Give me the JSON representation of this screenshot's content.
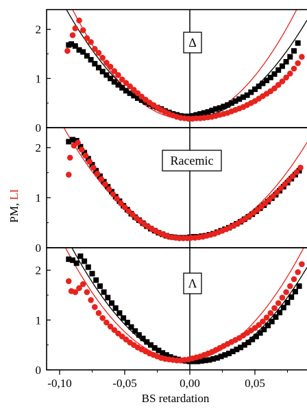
{
  "chart_data": {
    "type": "scatter",
    "xlabel": "BS retardation",
    "ylabel_parts": [
      {
        "text": "PM",
        "color": "#000000"
      },
      {
        "text": ", ",
        "color": "#000000"
      },
      {
        "text": "LI",
        "color": "#e8231d"
      }
    ],
    "xlim": [
      -0.11,
      0.09
    ],
    "x_ticks": [
      -0.1,
      -0.05,
      0.0,
      0.05
    ],
    "x_tick_labels": [
      "-0,10",
      "-0,05",
      "0,00",
      "0,05"
    ],
    "vline_x": 0.0,
    "colors": {
      "PM": "#000000",
      "LI": "#e8231d"
    },
    "panels": [
      {
        "label": "Δ",
        "ylim": [
          0,
          2.4
        ],
        "y_ticks": [
          0,
          1,
          2
        ],
        "y_tick_labels": [
          "0",
          "1",
          "2"
        ],
        "series": [
          {
            "name": "PM",
            "marker": "square",
            "x": [
              -0.093,
              -0.091,
              -0.088,
              -0.085,
              -0.082,
              -0.079,
              -0.076,
              -0.073,
              -0.07,
              -0.067,
              -0.064,
              -0.061,
              -0.058,
              -0.055,
              -0.052,
              -0.049,
              -0.046,
              -0.043,
              -0.04,
              -0.037,
              -0.034,
              -0.031,
              -0.028,
              -0.025,
              -0.022,
              -0.019,
              -0.016,
              -0.013,
              -0.01,
              -0.007,
              -0.004,
              -0.001,
              0.002,
              0.005,
              0.008,
              0.011,
              0.014,
              0.017,
              0.02,
              0.023,
              0.026,
              0.029,
              0.032,
              0.035,
              0.038,
              0.041,
              0.044,
              0.047,
              0.05,
              0.053,
              0.056,
              0.059,
              0.062,
              0.065,
              0.068,
              0.071,
              0.074,
              0.077,
              0.08,
              0.083
            ],
            "y": [
              1.68,
              1.7,
              1.66,
              1.58,
              1.54,
              1.46,
              1.38,
              1.3,
              1.22,
              1.14,
              1.07,
              1.0,
              0.93,
              0.87,
              0.81,
              0.75,
              0.7,
              0.65,
              0.6,
              0.56,
              0.52,
              0.48,
              0.44,
              0.41,
              0.38,
              0.34,
              0.31,
              0.28,
              0.26,
              0.24,
              0.23,
              0.23,
              0.24,
              0.26,
              0.28,
              0.3,
              0.32,
              0.35,
              0.38,
              0.4,
              0.43,
              0.46,
              0.5,
              0.54,
              0.58,
              0.62,
              0.66,
              0.72,
              0.78,
              0.84,
              0.9,
              0.96,
              1.02,
              1.09,
              1.17,
              1.25,
              1.34,
              1.44,
              1.56,
              1.72
            ]
          },
          {
            "name": "LI",
            "marker": "circle",
            "x": [
              -0.094,
              -0.09,
              -0.088,
              -0.085,
              -0.082,
              -0.079,
              -0.076,
              -0.073,
              -0.07,
              -0.067,
              -0.064,
              -0.061,
              -0.058,
              -0.055,
              -0.052,
              -0.049,
              -0.046,
              -0.043,
              -0.04,
              -0.037,
              -0.034,
              -0.031,
              -0.028,
              -0.025,
              -0.022,
              -0.019,
              -0.016,
              -0.013,
              -0.01,
              -0.007,
              -0.004,
              -0.001,
              0.002,
              0.005,
              0.008,
              0.011,
              0.014,
              0.017,
              0.02,
              0.023,
              0.026,
              0.029,
              0.032,
              0.035,
              0.038,
              0.041,
              0.044,
              0.047,
              0.05,
              0.053,
              0.056,
              0.059,
              0.062,
              0.065,
              0.068,
              0.071,
              0.074,
              0.077,
              0.08,
              0.083,
              0.086
            ],
            "y": [
              1.56,
              1.88,
              2.02,
              2.18,
              1.98,
              1.82,
              1.74,
              1.6,
              1.52,
              1.42,
              1.32,
              1.24,
              1.15,
              1.07,
              0.98,
              0.91,
              0.84,
              0.77,
              0.7,
              0.63,
              0.57,
              0.51,
              0.46,
              0.41,
              0.36,
              0.32,
              0.28,
              0.25,
              0.22,
              0.2,
              0.19,
              0.18,
              0.18,
              0.19,
              0.19,
              0.2,
              0.21,
              0.22,
              0.24,
              0.26,
              0.28,
              0.3,
              0.33,
              0.36,
              0.39,
              0.42,
              0.46,
              0.5,
              0.54,
              0.59,
              0.64,
              0.69,
              0.74,
              0.8,
              0.87,
              0.94,
              1.02,
              1.1,
              1.2,
              1.31,
              1.44
            ]
          }
        ],
        "fits": [
          {
            "name": "PM fit",
            "x0": 0.0,
            "a": 245,
            "c": 0.2,
            "color": "#000000"
          },
          {
            "name": "LI fit",
            "x0": -0.004,
            "a": 300,
            "c": 0.18,
            "color": "#e8231d"
          }
        ]
      },
      {
        "label": "Racemic",
        "ylim": [
          0,
          2.4
        ],
        "y_ticks": [
          0,
          1,
          2
        ],
        "y_tick_labels": [
          "0",
          "1",
          "2"
        ],
        "series": [
          {
            "name": "PM",
            "marker": "square",
            "x": [
              -0.093,
              -0.09,
              -0.087,
              -0.084,
              -0.081,
              -0.078,
              -0.075,
              -0.072,
              -0.069,
              -0.066,
              -0.063,
              -0.06,
              -0.057,
              -0.054,
              -0.051,
              -0.048,
              -0.045,
              -0.042,
              -0.039,
              -0.036,
              -0.033,
              -0.03,
              -0.027,
              -0.024,
              -0.021,
              -0.018,
              -0.015,
              -0.012,
              -0.009,
              -0.006,
              -0.003,
              0.0,
              0.003,
              0.006,
              0.009,
              0.012,
              0.015,
              0.018,
              0.021,
              0.024,
              0.027,
              0.03,
              0.033,
              0.036,
              0.039,
              0.042,
              0.045,
              0.048,
              0.051,
              0.054,
              0.057,
              0.06,
              0.063,
              0.066,
              0.069,
              0.072,
              0.075,
              0.078,
              0.081,
              0.084
            ],
            "y": [
              2.12,
              2.16,
              2.14,
              2.02,
              1.9,
              1.78,
              1.66,
              1.54,
              1.43,
              1.32,
              1.22,
              1.12,
              1.02,
              0.93,
              0.84,
              0.76,
              0.68,
              0.61,
              0.55,
              0.49,
              0.43,
              0.38,
              0.34,
              0.3,
              0.27,
              0.24,
              0.22,
              0.21,
              0.2,
              0.2,
              0.2,
              0.21,
              0.22,
              0.22,
              0.23,
              0.24,
              0.26,
              0.28,
              0.31,
              0.34,
              0.37,
              0.4,
              0.44,
              0.48,
              0.52,
              0.57,
              0.62,
              0.67,
              0.73,
              0.79,
              0.85,
              0.92,
              0.99,
              1.06,
              1.14,
              1.22,
              1.3,
              1.38,
              1.46,
              1.54
            ]
          },
          {
            "name": "LI",
            "marker": "circle",
            "x": [
              -0.093,
              -0.092,
              -0.089,
              -0.086,
              -0.083,
              -0.08,
              -0.077,
              -0.074,
              -0.071,
              -0.068,
              -0.065,
              -0.062,
              -0.059,
              -0.056,
              -0.053,
              -0.05,
              -0.047,
              -0.044,
              -0.041,
              -0.038,
              -0.035,
              -0.032,
              -0.029,
              -0.026,
              -0.023,
              -0.02,
              -0.017,
              -0.014,
              -0.011,
              -0.008,
              -0.005,
              -0.002,
              0.001,
              0.004,
              0.007,
              0.01,
              0.013,
              0.016,
              0.019,
              0.022,
              0.025,
              0.028,
              0.031,
              0.034,
              0.037,
              0.04,
              0.043,
              0.046,
              0.049,
              0.052,
              0.055,
              0.058,
              0.061,
              0.064,
              0.067,
              0.07,
              0.073,
              0.076,
              0.079,
              0.082,
              0.085
            ],
            "y": [
              1.46,
              1.8,
              2.04,
              2.1,
              1.96,
              1.84,
              1.72,
              1.6,
              1.48,
              1.37,
              1.27,
              1.17,
              1.07,
              0.98,
              0.89,
              0.81,
              0.73,
              0.66,
              0.59,
              0.53,
              0.47,
              0.42,
              0.37,
              0.33,
              0.29,
              0.26,
              0.23,
              0.21,
              0.2,
              0.19,
              0.19,
              0.19,
              0.2,
              0.2,
              0.21,
              0.22,
              0.24,
              0.26,
              0.28,
              0.31,
              0.34,
              0.37,
              0.41,
              0.45,
              0.49,
              0.54,
              0.59,
              0.64,
              0.7,
              0.76,
              0.82,
              0.89,
              0.96,
              1.03,
              1.11,
              1.19,
              1.27,
              1.35,
              1.43,
              1.51,
              1.6
            ]
          }
        ],
        "fits": [
          {
            "name": "LI fit",
            "x0": 0.0,
            "a": 235,
            "c": 0.2,
            "color": "#e8231d"
          }
        ]
      },
      {
        "label": "Λ",
        "ylim": [
          0,
          2.45
        ],
        "y_ticks": [
          0,
          1,
          2
        ],
        "y_tick_labels": [
          "0",
          "1",
          "2"
        ],
        "series": [
          {
            "name": "PM",
            "marker": "square",
            "x": [
              -0.093,
              -0.09,
              -0.087,
              -0.084,
              -0.081,
              -0.078,
              -0.075,
              -0.072,
              -0.069,
              -0.066,
              -0.063,
              -0.06,
              -0.057,
              -0.054,
              -0.051,
              -0.048,
              -0.045,
              -0.042,
              -0.039,
              -0.036,
              -0.033,
              -0.03,
              -0.027,
              -0.024,
              -0.021,
              -0.018,
              -0.015,
              -0.012,
              -0.009,
              -0.006,
              -0.003,
              0.0,
              0.003,
              0.006,
              0.009,
              0.012,
              0.015,
              0.018,
              0.021,
              0.024,
              0.027,
              0.03,
              0.033,
              0.036,
              0.039,
              0.042,
              0.045,
              0.048,
              0.051,
              0.054,
              0.057,
              0.06,
              0.063,
              0.066,
              0.069,
              0.072,
              0.075,
              0.078,
              0.081,
              0.084
            ],
            "y": [
              2.22,
              2.2,
              2.14,
              2.28,
              2.18,
              2.06,
              1.93,
              1.8,
              1.68,
              1.56,
              1.45,
              1.34,
              1.24,
              1.14,
              1.04,
              0.95,
              0.86,
              0.78,
              0.7,
              0.63,
              0.56,
              0.5,
              0.44,
              0.39,
              0.34,
              0.3,
              0.26,
              0.23,
              0.21,
              0.19,
              0.18,
              0.17,
              0.17,
              0.17,
              0.18,
              0.19,
              0.2,
              0.22,
              0.24,
              0.27,
              0.3,
              0.33,
              0.37,
              0.41,
              0.45,
              0.5,
              0.55,
              0.61,
              0.67,
              0.74,
              0.81,
              0.89,
              0.97,
              1.06,
              1.15,
              1.25,
              1.35,
              1.46,
              1.57,
              1.68
            ]
          },
          {
            "name": "LI",
            "marker": "circle",
            "x": [
              -0.093,
              -0.091,
              -0.088,
              -0.085,
              -0.082,
              -0.079,
              -0.076,
              -0.073,
              -0.07,
              -0.067,
              -0.064,
              -0.061,
              -0.058,
              -0.055,
              -0.052,
              -0.049,
              -0.046,
              -0.043,
              -0.04,
              -0.037,
              -0.034,
              -0.031,
              -0.028,
              -0.025,
              -0.022,
              -0.019,
              -0.016,
              -0.013,
              -0.01,
              -0.007,
              -0.004,
              -0.001,
              0.002,
              0.005,
              0.008,
              0.011,
              0.014,
              0.017,
              0.02,
              0.023,
              0.026,
              0.029,
              0.032,
              0.035,
              0.038,
              0.041,
              0.044,
              0.047,
              0.05,
              0.053,
              0.056,
              0.059,
              0.062,
              0.065,
              0.068,
              0.071,
              0.074,
              0.077,
              0.08,
              0.083,
              0.086
            ],
            "y": [
              1.78,
              1.58,
              1.56,
              1.64,
              1.72,
              1.56,
              1.4,
              1.26,
              1.14,
              1.04,
              0.95,
              0.87,
              0.8,
              0.73,
              0.67,
              0.61,
              0.55,
              0.5,
              0.45,
              0.41,
              0.37,
              0.33,
              0.3,
              0.27,
              0.24,
              0.22,
              0.21,
              0.2,
              0.19,
              0.19,
              0.2,
              0.21,
              0.23,
              0.25,
              0.27,
              0.3,
              0.33,
              0.36,
              0.4,
              0.44,
              0.48,
              0.52,
              0.56,
              0.6,
              0.64,
              0.69,
              0.74,
              0.79,
              0.84,
              0.9,
              0.97,
              1.05,
              1.14,
              1.24,
              1.34,
              1.45,
              1.56,
              1.68,
              1.82,
              1.96,
              2.12
            ]
          }
        ],
        "fits": [
          {
            "name": "PM fit",
            "x0": 0.004,
            "a": 255,
            "c": 0.17,
            "color": "#000000"
          },
          {
            "name": "LI fit",
            "x0": -0.004,
            "a": 270,
            "c": 0.19,
            "color": "#e8231d"
          }
        ]
      }
    ]
  }
}
